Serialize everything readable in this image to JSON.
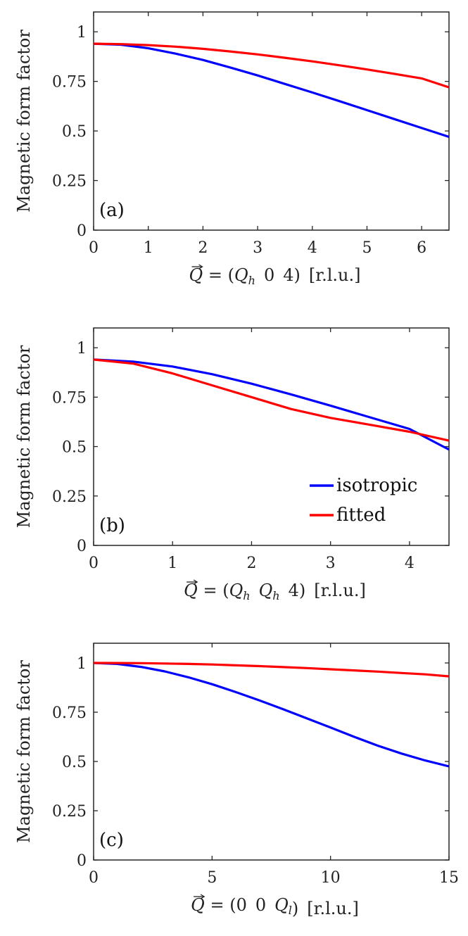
{
  "chart_data": [
    {
      "type": "line",
      "panel_label": "(a)",
      "ylabel": "Magnetic form factor",
      "xlabel": {
        "lhs": "Q",
        "eq": " = ",
        "vec": [
          "Q",
          "h",
          "0",
          "4"
        ],
        "units": "[r.l.u.]",
        "text": "Q = (Q_h 0 4) [r.l.u.]"
      },
      "xlim": [
        0,
        6.5
      ],
      "ylim": [
        0,
        1.1
      ],
      "xticks": [
        0,
        1,
        2,
        3,
        4,
        5,
        6
      ],
      "xtick_labels": [
        "0",
        "1",
        "2",
        "3",
        "4",
        "5",
        "6"
      ],
      "yticks": [
        0,
        0.25,
        0.5,
        0.75,
        1
      ],
      "ytick_labels": [
        "0",
        "0.25",
        "0.5",
        "0.75",
        "1"
      ],
      "legend": null,
      "series": [
        {
          "name": "isotropic",
          "color": "#0000ff",
          "x": [
            0,
            0.5,
            1,
            1.5,
            2,
            2.5,
            3,
            3.5,
            4,
            4.5,
            5,
            5.5,
            6,
            6.5
          ],
          "y": [
            0.94,
            0.935,
            0.917,
            0.89,
            0.858,
            0.82,
            0.78,
            0.737,
            0.694,
            0.65,
            0.605,
            0.56,
            0.515,
            0.47
          ]
        },
        {
          "name": "fitted",
          "color": "#ff0000",
          "x": [
            0,
            0.5,
            1,
            1.5,
            2,
            2.5,
            3,
            3.5,
            4,
            4.5,
            5,
            5.5,
            6,
            6.5
          ],
          "y": [
            0.94,
            0.938,
            0.933,
            0.925,
            0.914,
            0.901,
            0.886,
            0.869,
            0.851,
            0.831,
            0.81,
            0.788,
            0.765,
            0.72
          ]
        }
      ]
    },
    {
      "type": "line",
      "panel_label": "(b)",
      "ylabel": "Magnetic form factor",
      "xlabel": {
        "lhs": "Q",
        "eq": " = ",
        "vec": [
          "Q",
          "h",
          "Q",
          "h",
          "4"
        ],
        "units": "[r.l.u.]",
        "text": "Q = (Q_h Q_h 4) [r.l.u.]"
      },
      "xlim": [
        0,
        4.5
      ],
      "ylim": [
        0,
        1.1
      ],
      "xticks": [
        0,
        1,
        2,
        3,
        4
      ],
      "xtick_labels": [
        "0",
        "1",
        "2",
        "3",
        "4"
      ],
      "yticks": [
        0,
        0.25,
        0.5,
        0.75,
        1
      ],
      "ytick_labels": [
        "0",
        "0.25",
        "0.5",
        "0.75",
        "1"
      ],
      "legend": {
        "position": "lower-right",
        "entries": [
          "isotropic",
          "fitted"
        ]
      },
      "series": [
        {
          "name": "isotropic",
          "color": "#0000ff",
          "x": [
            0,
            0.5,
            1,
            1.5,
            2,
            2.5,
            3,
            3.5,
            4,
            4.5
          ],
          "y": [
            0.94,
            0.93,
            0.905,
            0.866,
            0.818,
            0.764,
            0.707,
            0.648,
            0.589,
            0.485
          ]
        },
        {
          "name": "fitted",
          "color": "#ff0000",
          "x": [
            0,
            0.5,
            1,
            1.5,
            2,
            2.5,
            3,
            3.5,
            4,
            4.5
          ],
          "y": [
            0.94,
            0.92,
            0.87,
            0.81,
            0.75,
            0.69,
            0.645,
            0.61,
            0.575,
            0.53
          ]
        }
      ]
    },
    {
      "type": "line",
      "panel_label": "(c)",
      "ylabel": "Magnetic form factor",
      "xlabel": {
        "lhs": "Q",
        "eq": " = ",
        "vec": [
          "0",
          "0",
          "Q",
          "l"
        ],
        "units": "[r.l.u.]",
        "text": "Q = (0 0 Q_l) [r.l.u.]"
      },
      "xlim": [
        0,
        15
      ],
      "ylim": [
        0,
        1.1
      ],
      "xticks": [
        0,
        5,
        10,
        15
      ],
      "xtick_labels": [
        "0",
        "5",
        "10",
        "15"
      ],
      "yticks": [
        0,
        0.25,
        0.5,
        0.75,
        1
      ],
      "ytick_labels": [
        "0",
        "0.25",
        "0.5",
        "0.75",
        "1"
      ],
      "legend": null,
      "series": [
        {
          "name": "isotropic",
          "color": "#0000ff",
          "x": [
            0,
            1,
            2,
            3,
            4,
            5,
            6,
            7,
            8,
            9,
            10,
            11,
            12,
            13,
            14,
            15
          ],
          "y": [
            1.0,
            0.995,
            0.98,
            0.957,
            0.927,
            0.892,
            0.852,
            0.81,
            0.765,
            0.719,
            0.672,
            0.625,
            0.58,
            0.54,
            0.505,
            0.475
          ]
        },
        {
          "name": "fitted",
          "color": "#ff0000",
          "x": [
            0,
            1,
            2,
            3,
            4,
            5,
            6,
            7,
            8,
            9,
            10,
            11,
            12,
            13,
            14,
            15
          ],
          "y": [
            1.0,
            0.9998,
            0.999,
            0.997,
            0.995,
            0.992,
            0.988,
            0.984,
            0.979,
            0.974,
            0.968,
            0.962,
            0.956,
            0.949,
            0.942,
            0.932
          ]
        }
      ]
    }
  ]
}
